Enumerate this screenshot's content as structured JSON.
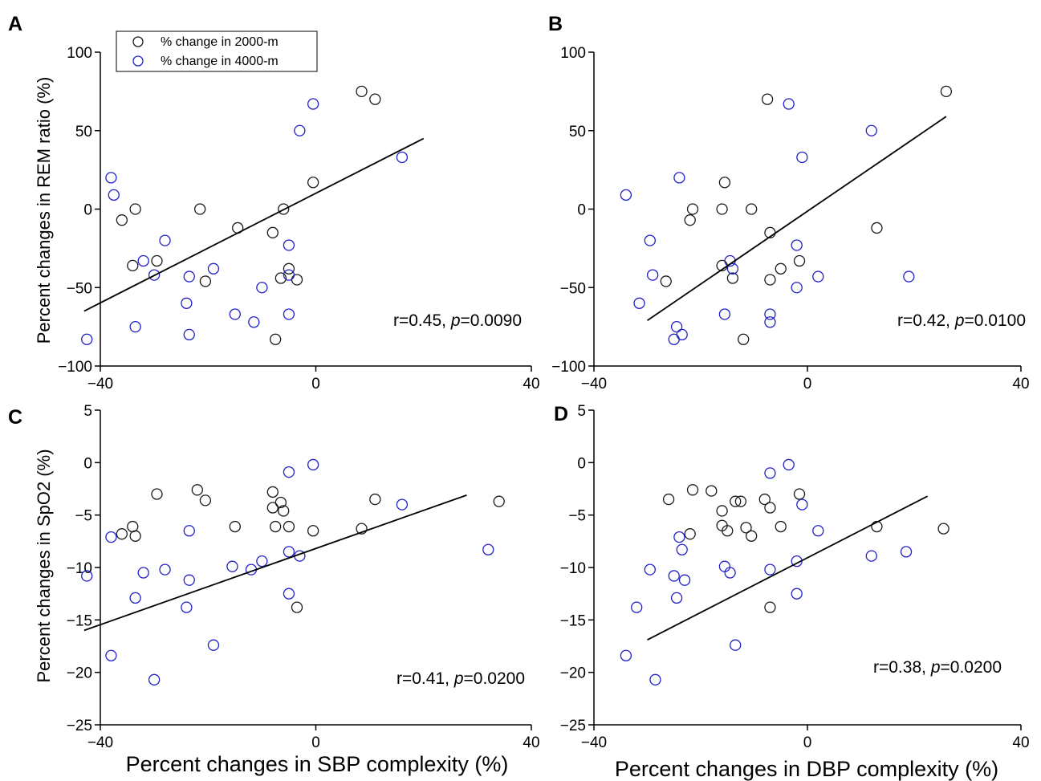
{
  "figure": {
    "legend": {
      "entries": [
        {
          "label": "% change in 2000-m",
          "color": "#1a1a1a"
        },
        {
          "label": "% change in 4000-m",
          "color": "#2020c8"
        }
      ]
    },
    "ylabel_top": "Percent changes in REM ratio (%)",
    "ylabel_bottom": "Percent changes in SpO2 (%)",
    "xlabel_left": "Percent changes in SBP complexity (%)",
    "xlabel_right": "Percent changes in DBP complexity (%)"
  },
  "chart_data": [
    {
      "panel": "A",
      "type": "scatter",
      "xlim": [
        -40,
        40
      ],
      "ylim": [
        -100,
        100
      ],
      "xticks": [
        -40,
        0,
        40
      ],
      "yticks": [
        -100,
        -50,
        0,
        50,
        100
      ],
      "annotation": {
        "r": "r=0.45, ",
        "p_label": "p",
        "p": "=0.0090"
      },
      "trendline": [
        [
          -43,
          -65
        ],
        [
          20,
          45
        ]
      ],
      "series": [
        {
          "name": "% change in 2000-m",
          "color": "#1a1a1a",
          "points": [
            [
              -36,
              -7
            ],
            [
              -33.5,
              0
            ],
            [
              -21.5,
              0
            ],
            [
              -14.5,
              -12
            ],
            [
              -6,
              0
            ],
            [
              -0.5,
              17
            ],
            [
              8.5,
              75
            ],
            [
              11,
              70
            ],
            [
              -34,
              -36
            ],
            [
              -29.5,
              -33
            ],
            [
              -20.5,
              -46
            ],
            [
              -8,
              -15
            ],
            [
              -6.5,
              -44
            ],
            [
              -5,
              -38
            ],
            [
              -3.5,
              -45
            ],
            [
              -7.5,
              -83
            ]
          ]
        },
        {
          "name": "% change in 4000-m",
          "color": "#2020c8",
          "points": [
            [
              -38,
              20
            ],
            [
              -37.5,
              9
            ],
            [
              -42.5,
              -83
            ],
            [
              -33.5,
              -75
            ],
            [
              -32,
              -33
            ],
            [
              -30,
              -42
            ],
            [
              -28,
              -20
            ],
            [
              -24,
              -60
            ],
            [
              -23.5,
              -43
            ],
            [
              -23.5,
              -80
            ],
            [
              -19,
              -38
            ],
            [
              -15,
              -67
            ],
            [
              -11.5,
              -72
            ],
            [
              -10,
              -50
            ],
            [
              -5,
              -23
            ],
            [
              -5,
              -42
            ],
            [
              -5,
              -67
            ],
            [
              -3,
              50
            ],
            [
              -0.5,
              67
            ],
            [
              16,
              33
            ]
          ]
        }
      ]
    },
    {
      "panel": "B",
      "type": "scatter",
      "xlim": [
        -40,
        40
      ],
      "ylim": [
        -100,
        100
      ],
      "xticks": [
        -40,
        0,
        40
      ],
      "yticks": [
        -100,
        -50,
        0,
        50,
        100
      ],
      "annotation": {
        "r": "r=0.42, ",
        "p_label": "p",
        "p": "=0.0100"
      },
      "trendline": [
        [
          -30,
          -71
        ],
        [
          26,
          59
        ]
      ],
      "series": [
        {
          "name": "% change in 2000-m",
          "color": "#1a1a1a",
          "points": [
            [
              -21.5,
              0
            ],
            [
              -22,
              -7
            ],
            [
              -16,
              0
            ],
            [
              -15.5,
              17
            ],
            [
              -10.5,
              0
            ],
            [
              -7.5,
              70
            ],
            [
              -26.5,
              -46
            ],
            [
              -16,
              -36
            ],
            [
              -14,
              -44
            ],
            [
              -7,
              -15
            ],
            [
              -5,
              -38
            ],
            [
              -7,
              -45
            ],
            [
              -1.5,
              -33
            ],
            [
              13,
              -12
            ],
            [
              -12,
              -83
            ],
            [
              26,
              75
            ]
          ]
        },
        {
          "name": "% change in 4000-m",
          "color": "#2020c8",
          "points": [
            [
              -34,
              9
            ],
            [
              -24,
              20
            ],
            [
              -29.5,
              -20
            ],
            [
              -29,
              -42
            ],
            [
              -31.5,
              -60
            ],
            [
              -24.5,
              -75
            ],
            [
              -23.5,
              -80
            ],
            [
              -25,
              -83
            ],
            [
              -14.5,
              -33
            ],
            [
              -14,
              -38
            ],
            [
              -15.5,
              -67
            ],
            [
              -7,
              -67
            ],
            [
              -7,
              -72
            ],
            [
              -2,
              -23
            ],
            [
              -2,
              -50
            ],
            [
              2,
              -43
            ],
            [
              -3.5,
              67
            ],
            [
              -1,
              33
            ],
            [
              12,
              50
            ],
            [
              19,
              -43
            ]
          ]
        }
      ]
    },
    {
      "panel": "C",
      "type": "scatter",
      "xlim": [
        -40,
        40
      ],
      "ylim": [
        -25,
        5
      ],
      "xticks": [
        -40,
        0,
        40
      ],
      "yticks": [
        -25,
        -20,
        -15,
        -10,
        -5,
        0,
        5
      ],
      "annotation": {
        "r": "r=0.41, ",
        "p_label": "p",
        "p": "=0.0200"
      },
      "trendline": [
        [
          -43,
          -16
        ],
        [
          28,
          -3.1
        ]
      ],
      "series": [
        {
          "name": "% change in 2000-m",
          "color": "#1a1a1a",
          "points": [
            [
              -29.5,
              -3
            ],
            [
              -22,
              -2.6
            ],
            [
              -20.5,
              -3.6
            ],
            [
              -8,
              -2.8
            ],
            [
              -8,
              -4.3
            ],
            [
              -6.5,
              -3.8
            ],
            [
              -6,
              -4.6
            ],
            [
              -7.5,
              -6.1
            ],
            [
              -5,
              -6.1
            ],
            [
              -0.5,
              -6.5
            ],
            [
              -36,
              -6.8
            ],
            [
              -34,
              -6.1
            ],
            [
              -33.5,
              -7
            ],
            [
              -15,
              -6.1
            ],
            [
              8.5,
              -6.3
            ],
            [
              11,
              -3.5
            ],
            [
              -3.5,
              -13.8
            ],
            [
              34,
              -3.7
            ]
          ]
        },
        {
          "name": "% change in 4000-m",
          "color": "#2020c8",
          "points": [
            [
              -38,
              -7.1
            ],
            [
              -42.5,
              -10.8
            ],
            [
              -32,
              -10.5
            ],
            [
              -28,
              -10.2
            ],
            [
              -23.5,
              -6.5
            ],
            [
              -23.5,
              -11.2
            ],
            [
              -24,
              -13.8
            ],
            [
              -33.5,
              -12.9
            ],
            [
              -38,
              -18.4
            ],
            [
              -30,
              -20.7
            ],
            [
              -19,
              -17.4
            ],
            [
              -15.5,
              -9.9
            ],
            [
              -12,
              -10.2
            ],
            [
              -10,
              -9.4
            ],
            [
              -5,
              -0.9
            ],
            [
              -5,
              -8.5
            ],
            [
              -3,
              -8.9
            ],
            [
              -5,
              -12.5
            ],
            [
              -0.5,
              -0.2
            ],
            [
              16,
              -4
            ],
            [
              32,
              -8.3
            ]
          ]
        }
      ]
    },
    {
      "panel": "D",
      "type": "scatter",
      "xlim": [
        -40,
        40
      ],
      "ylim": [
        -25,
        5
      ],
      "xticks": [
        -40,
        0,
        40
      ],
      "yticks": [
        -25,
        -20,
        -15,
        -10,
        -5,
        0,
        5
      ],
      "annotation": {
        "r": "r=0.38, ",
        "p_label": "p",
        "p": "=0.0200"
      },
      "trendline": [
        [
          -30,
          -16.9
        ],
        [
          22.5,
          -3.2
        ]
      ],
      "series": [
        {
          "name": "% change in 2000-m",
          "color": "#1a1a1a",
          "points": [
            [
              -26,
              -3.5
            ],
            [
              -21.5,
              -2.6
            ],
            [
              -22,
              -6.8
            ],
            [
              -18,
              -2.7
            ],
            [
              -16,
              -4.6
            ],
            [
              -16,
              -6
            ],
            [
              -15,
              -6.5
            ],
            [
              -13.5,
              -3.7
            ],
            [
              -12.5,
              -3.7
            ],
            [
              -11.5,
              -6.2
            ],
            [
              -10.5,
              -7
            ],
            [
              -8,
              -3.5
            ],
            [
              -7,
              -4.3
            ],
            [
              -5,
              -6.1
            ],
            [
              -1.5,
              -3
            ],
            [
              -7,
              -13.8
            ],
            [
              13,
              -6.1
            ],
            [
              25.5,
              -6.3
            ]
          ]
        },
        {
          "name": "% change in 4000-m",
          "color": "#2020c8",
          "points": [
            [
              -24,
              -7.1
            ],
            [
              -23.5,
              -8.3
            ],
            [
              -25,
              -10.8
            ],
            [
              -23,
              -11.2
            ],
            [
              -29.5,
              -10.2
            ],
            [
              -32,
              -13.8
            ],
            [
              -24.5,
              -12.9
            ],
            [
              -34,
              -18.4
            ],
            [
              -28.5,
              -20.7
            ],
            [
              -15.5,
              -9.9
            ],
            [
              -14.5,
              -10.5
            ],
            [
              -13.5,
              -17.4
            ],
            [
              -7,
              -1
            ],
            [
              -3.5,
              -0.2
            ],
            [
              -7,
              -10.2
            ],
            [
              -2,
              -9.4
            ],
            [
              -2,
              -12.5
            ],
            [
              2,
              -6.5
            ],
            [
              -1,
              -4
            ],
            [
              12,
              -8.9
            ],
            [
              18.5,
              -8.5
            ]
          ]
        }
      ]
    }
  ]
}
